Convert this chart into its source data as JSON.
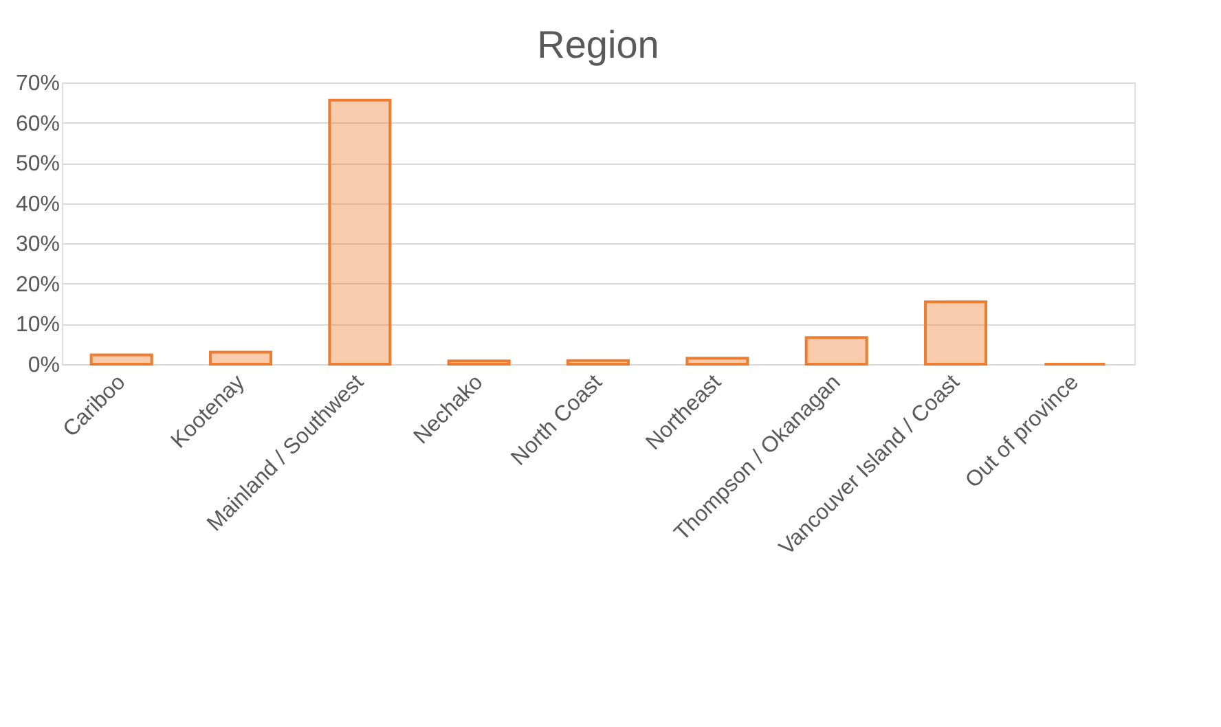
{
  "chart_data": {
    "type": "bar",
    "title": "Region",
    "categories": [
      "Cariboo",
      "Kootenay",
      "Mainland / Southwest",
      "Nechako",
      "North Coast",
      "Northeast",
      "Thompson / Okanagan",
      "Vancouver Island / Coast",
      "Out of province"
    ],
    "values": [
      2.3,
      3.0,
      65.6,
      0.8,
      0.9,
      1.5,
      6.6,
      15.5,
      0
    ],
    "color": "#ed7d31",
    "ylim": [
      0,
      70
    ],
    "yticks": [
      {
        "value": 0,
        "label": "0%"
      },
      {
        "value": 10,
        "label": "10%"
      },
      {
        "value": 20,
        "label": "20%"
      },
      {
        "value": 30,
        "label": "30%"
      },
      {
        "value": 40,
        "label": "40%"
      },
      {
        "value": 50,
        "label": "50%"
      },
      {
        "value": 60,
        "label": "60%"
      },
      {
        "value": 70,
        "label": "70%"
      }
    ],
    "grid": "y"
  }
}
